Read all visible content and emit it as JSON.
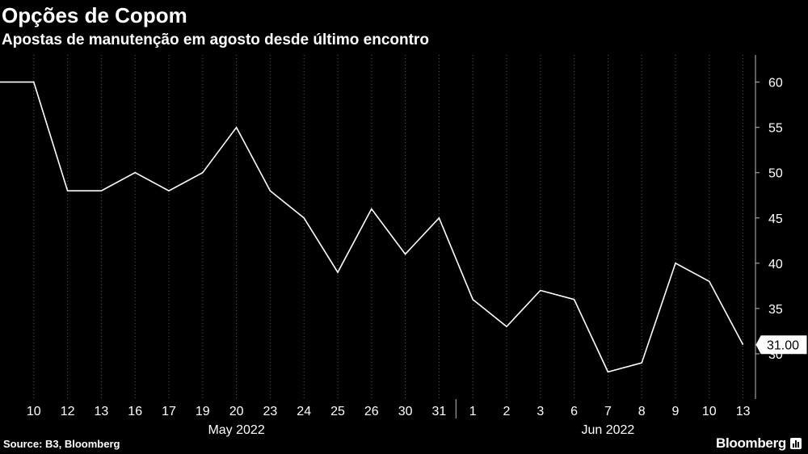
{
  "title": "Opções de Copom",
  "subtitle": "Apostas de manutenção em agosto desde último encontro",
  "source": "Source: B3, Bloomberg",
  "brand": "Bloomberg",
  "colors": {
    "background": "#000000",
    "line": "#ffffff",
    "text": "#ffffff",
    "grid": "#5a5a5a"
  },
  "chart_data": {
    "type": "line",
    "title": "Opções de Copom",
    "subtitle": "Apostas de manutenção em agosto desde último encontro",
    "x": [
      "May 9",
      "May 10",
      "May 12",
      "May 13",
      "May 16",
      "May 17",
      "May 19",
      "May 20",
      "May 23",
      "May 24",
      "May 25",
      "May 26",
      "May 30",
      "May 31",
      "Jun 1",
      "Jun 2",
      "Jun 3",
      "Jun 6",
      "Jun 7",
      "Jun 8",
      "Jun 9",
      "Jun 10",
      "Jun 13"
    ],
    "x_tick_labels": [
      "10",
      "12",
      "13",
      "16",
      "17",
      "19",
      "20",
      "23",
      "24",
      "25",
      "26",
      "30",
      "31",
      "1",
      "2",
      "3",
      "6",
      "7",
      "8",
      "9",
      "10",
      "13"
    ],
    "month_labels": [
      "May 2022",
      "Jun 2022"
    ],
    "series": [
      {
        "values": [
          60,
          60,
          48,
          48,
          50,
          48,
          50,
          55,
          48,
          45,
          39,
          46,
          41,
          45,
          36,
          33,
          37,
          36,
          28,
          29,
          40,
          38,
          31
        ]
      }
    ],
    "last_value_label": "31.00",
    "y_ticks": [
      30,
      35,
      40,
      45,
      50,
      55,
      60
    ],
    "ylim": [
      25,
      63
    ],
    "y_axis_position": "right",
    "grid": true,
    "grid_style": "vertical dotted",
    "legend": "none"
  }
}
